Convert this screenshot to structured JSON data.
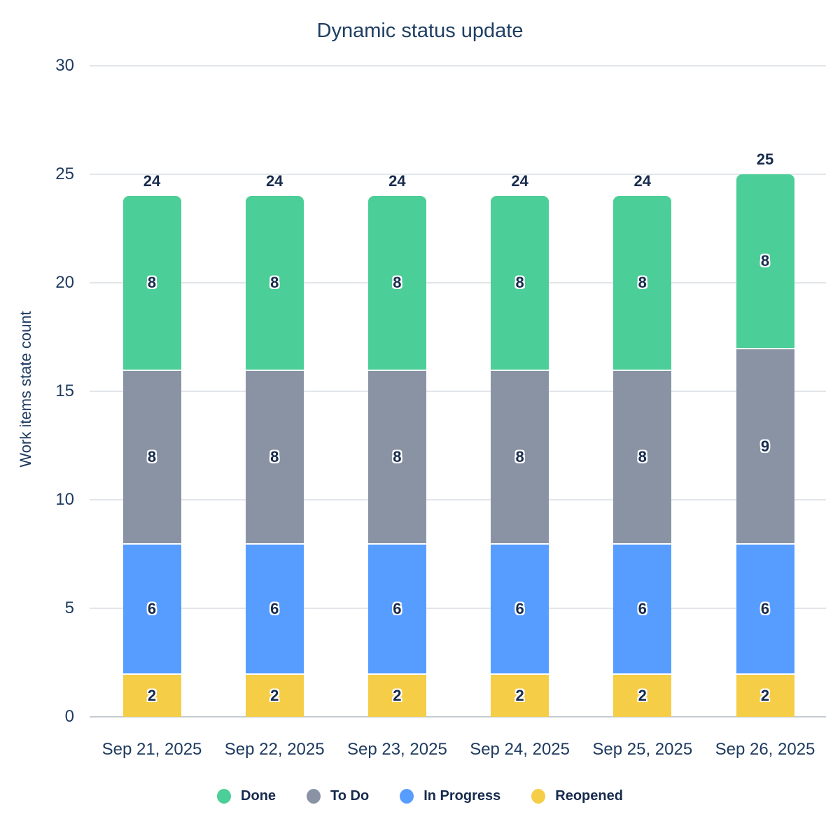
{
  "title": "Dynamic status update",
  "chart_data": {
    "type": "bar",
    "stacked": true,
    "title": "Dynamic status update",
    "xlabel": "",
    "ylabel": "Work items state count",
    "ylim": [
      0,
      30
    ],
    "yticks": [
      0,
      5,
      10,
      15,
      20,
      25,
      30
    ],
    "grid": true,
    "legend_position": "bottom",
    "categories": [
      "Sep 21, 2025",
      "Sep 22, 2025",
      "Sep 23, 2025",
      "Sep 24, 2025",
      "Sep 25, 2025",
      "Sep 26, 2025"
    ],
    "series": [
      {
        "name": "Reopened",
        "color": "#F5CD47",
        "values": [
          2,
          2,
          2,
          2,
          2,
          2
        ]
      },
      {
        "name": "In Progress",
        "color": "#579DFF",
        "values": [
          6,
          6,
          6,
          6,
          6,
          6
        ]
      },
      {
        "name": "To Do",
        "color": "#8993A4",
        "values": [
          8,
          8,
          8,
          8,
          8,
          9
        ]
      },
      {
        "name": "Done",
        "color": "#4BCE97",
        "values": [
          8,
          8,
          8,
          8,
          8,
          8
        ]
      }
    ],
    "totals": [
      24,
      24,
      24,
      24,
      24,
      25
    ],
    "legend": [
      {
        "name": "Done",
        "color": "#4BCE97"
      },
      {
        "name": "To Do",
        "color": "#8993A4"
      },
      {
        "name": "In Progress",
        "color": "#579DFF"
      },
      {
        "name": "Reopened",
        "color": "#F5CD47"
      }
    ]
  },
  "colors": {
    "text": "#1E3A5F",
    "text_bold": "#172B4D",
    "gridline": "#E2E6EA",
    "axis_line": "#C5CBD2",
    "background": "#FFFFFF"
  }
}
